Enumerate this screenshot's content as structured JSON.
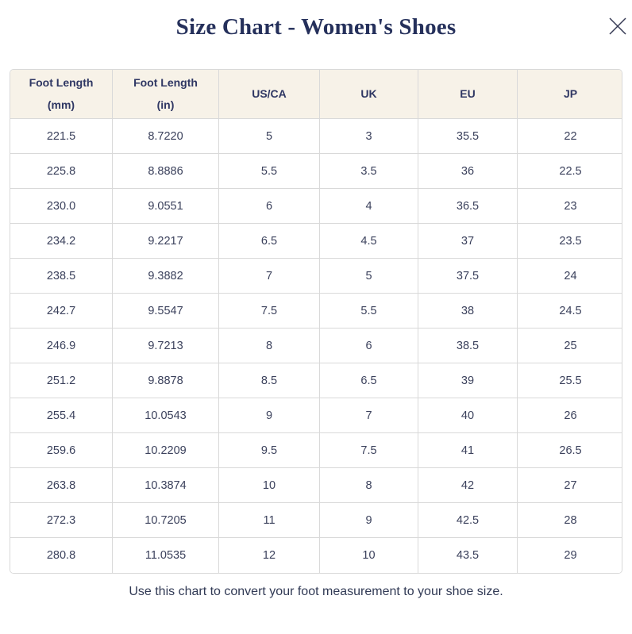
{
  "dialog": {
    "title": "Size Chart - Women's Shoes",
    "footer_note": "Use this chart to convert your foot measurement to your shoe size."
  },
  "icons": {
    "close": "✕"
  },
  "colors": {
    "title_text": "#25305b",
    "header_text": "#2f3763",
    "body_text": "#3b415c",
    "footer_text": "#313a55",
    "header_bg": "#f7f2e8",
    "border": "#d9d9d9"
  },
  "table": {
    "headers": [
      {
        "line1": "Foot Length",
        "line2": "(mm)"
      },
      {
        "line1": "Foot Length",
        "line2": "(in)"
      },
      {
        "line1": "US/CA"
      },
      {
        "line1": "UK"
      },
      {
        "line1": "EU"
      },
      {
        "line1": "JP"
      }
    ],
    "rows": [
      [
        "221.5",
        "8.7220",
        "5",
        "3",
        "35.5",
        "22"
      ],
      [
        "225.8",
        "8.8886",
        "5.5",
        "3.5",
        "36",
        "22.5"
      ],
      [
        "230.0",
        "9.0551",
        "6",
        "4",
        "36.5",
        "23"
      ],
      [
        "234.2",
        "9.2217",
        "6.5",
        "4.5",
        "37",
        "23.5"
      ],
      [
        "238.5",
        "9.3882",
        "7",
        "5",
        "37.5",
        "24"
      ],
      [
        "242.7",
        "9.5547",
        "7.5",
        "5.5",
        "38",
        "24.5"
      ],
      [
        "246.9",
        "9.7213",
        "8",
        "6",
        "38.5",
        "25"
      ],
      [
        "251.2",
        "9.8878",
        "8.5",
        "6.5",
        "39",
        "25.5"
      ],
      [
        "255.4",
        "10.0543",
        "9",
        "7",
        "40",
        "26"
      ],
      [
        "259.6",
        "10.2209",
        "9.5",
        "7.5",
        "41",
        "26.5"
      ],
      [
        "263.8",
        "10.3874",
        "10",
        "8",
        "42",
        "27"
      ],
      [
        "272.3",
        "10.7205",
        "11",
        "9",
        "42.5",
        "28"
      ],
      [
        "280.8",
        "11.0535",
        "12",
        "10",
        "43.5",
        "29"
      ]
    ]
  }
}
